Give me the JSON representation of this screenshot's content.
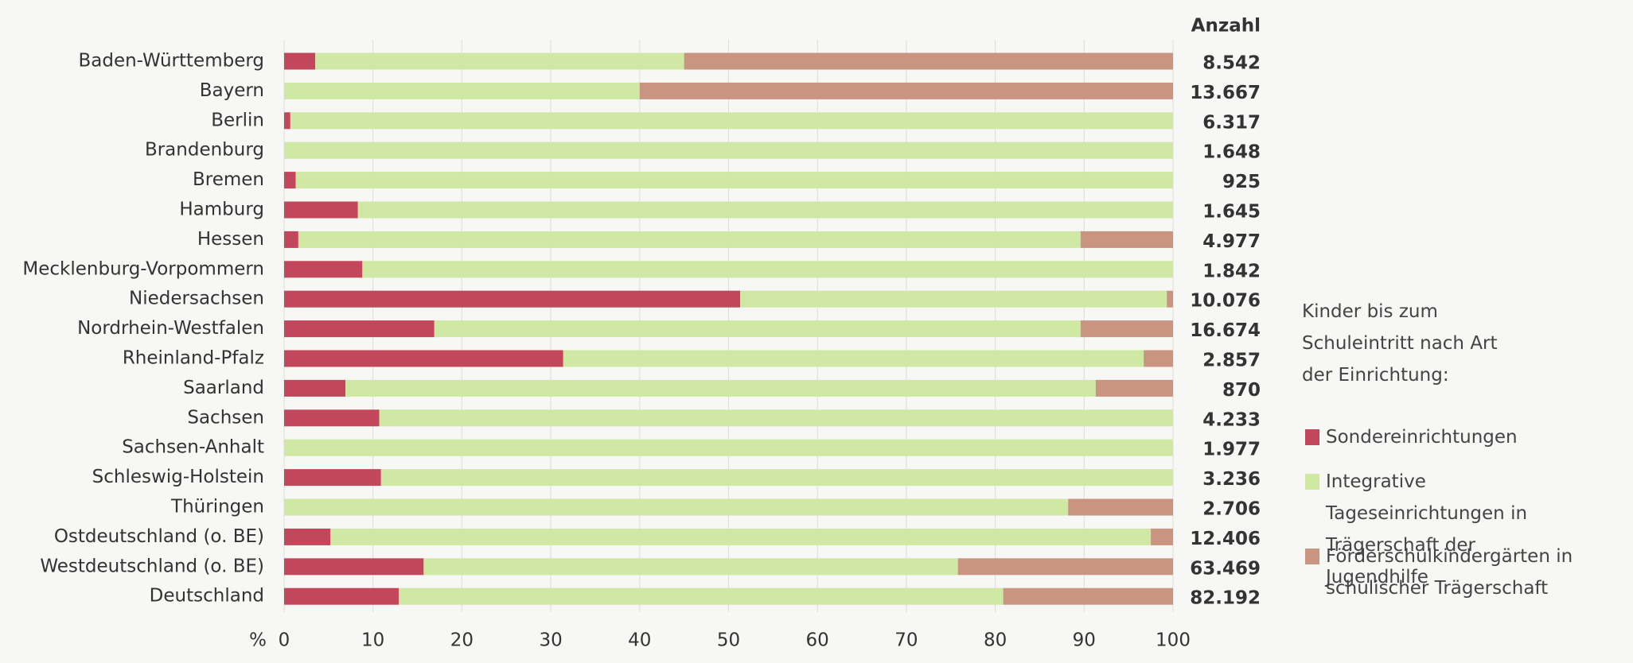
{
  "chart_data": {
    "type": "stacked-bar-horizontal",
    "categories": [
      "Baden-Württemberg",
      "Bayern",
      "Berlin",
      "Brandenburg",
      "Bremen",
      "Hamburg",
      "Hessen",
      "Mecklenburg-Vorpommern",
      "Niedersachsen",
      "Nordrhein-Westfalen",
      "Rheinland-Pfalz",
      "Saarland",
      "Sachsen",
      "Sachsen-Anhalt",
      "Schleswig-Holstein",
      "Thüringen",
      "Ostdeutschland (o. BE)",
      "Westdeutschland (o. BE)",
      "Deutschland"
    ],
    "series": [
      {
        "name": "Sondereinrichtungen",
        "color": "#c2475a",
        "values": [
          3.5,
          0,
          0.7,
          0,
          1.3,
          8.3,
          1.6,
          8.8,
          51.3,
          16.9,
          31.4,
          6.9,
          10.7,
          0,
          10.9,
          0,
          5.2,
          15.7,
          12.9
        ]
      },
      {
        "name": "Integrative Tageseinrichtungen in Trägerschaft der Jugendhilfe",
        "color": "#cfe8a4",
        "values": [
          41.5,
          40,
          99.3,
          100,
          98.7,
          91.7,
          88,
          91.2,
          48,
          72.7,
          65.3,
          84.4,
          89.3,
          100,
          89.1,
          88.2,
          92.3,
          60.1,
          68
        ]
      },
      {
        "name": "Förderschulkindergärten in schulischer Trägerschaft",
        "color": "#c99580",
        "values": [
          55,
          60,
          0,
          0,
          0,
          0,
          10.4,
          0,
          0.7,
          10.4,
          3.3,
          8.7,
          0,
          0,
          0,
          11.8,
          2.5,
          24.2,
          19.1
        ]
      }
    ],
    "xlabel": "%",
    "xlim": [
      0,
      100
    ],
    "xticks": [
      0,
      10,
      20,
      30,
      40,
      50,
      60,
      70,
      80,
      90,
      100
    ],
    "grid": true,
    "anzahl": {
      "title": "Anzahl",
      "values": [
        8542,
        13667,
        6317,
        1648,
        925,
        1645,
        4977,
        1842,
        10076,
        16674,
        2857,
        870,
        4233,
        1977,
        3236,
        2706,
        12406,
        63469,
        82192
      ],
      "value_labels": [
        "8.542",
        "13.667",
        "6.317",
        "1.648",
        "925",
        "1.645",
        "4.977",
        "1.842",
        "10.076",
        "16.674",
        "2.857",
        "870",
        "4.233",
        "1.977",
        "3.236",
        "2.706",
        "12.406",
        "63.469",
        "82.192"
      ]
    },
    "legend_title": "Kinder bis zum Schuleintritt nach Art der Einrichtung:"
  }
}
